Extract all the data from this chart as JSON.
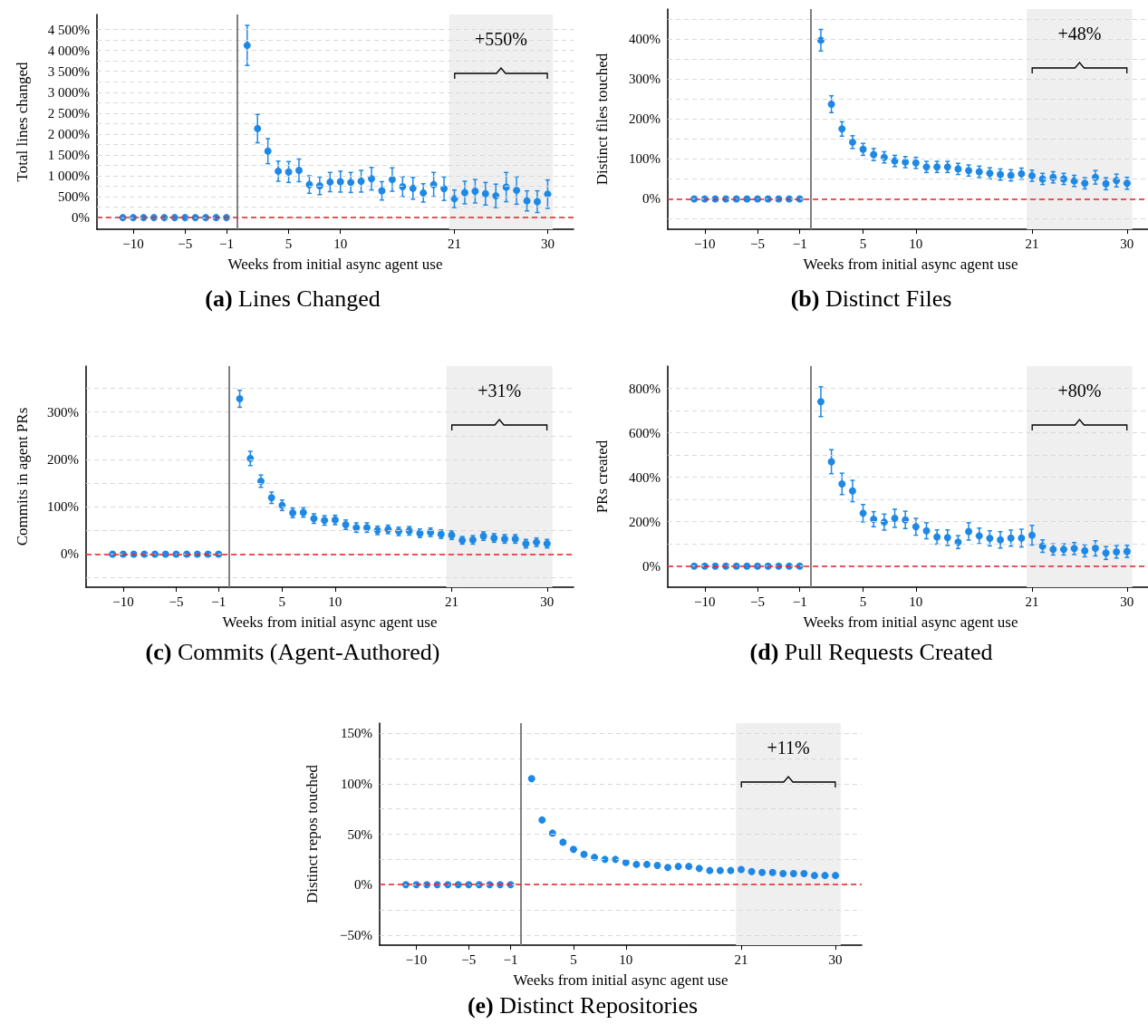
{
  "chart_data": [
    {
      "type": "scatter",
      "title": "(a) Lines Changed",
      "xlabel": "Weeks from initial async agent use",
      "ylabel": "Total lines changed",
      "color": "#1e88e5",
      "marker": "circle",
      "grid": "y",
      "x": [
        -11,
        -10,
        -9,
        -8,
        -7,
        -6,
        -5,
        -4,
        -3,
        -2,
        -1,
        1,
        2,
        3,
        4,
        5,
        6,
        7,
        8,
        9,
        10,
        11,
        12,
        13,
        14,
        15,
        16,
        17,
        18,
        19,
        20,
        21,
        22,
        23,
        24,
        25,
        26,
        27,
        28,
        29,
        30
      ],
      "values": [
        0,
        0,
        0,
        0,
        0,
        0,
        0,
        0,
        0,
        0,
        0,
        4120,
        2130,
        1590,
        1110,
        1090,
        1130,
        790,
        760,
        850,
        860,
        840,
        870,
        930,
        640,
        910,
        740,
        700,
        590,
        790,
        690,
        450,
        600,
        630,
        570,
        520,
        730,
        650,
        400,
        380,
        560
      ],
      "errors": [
        null,
        null,
        null,
        null,
        null,
        null,
        null,
        null,
        null,
        null,
        null,
        480,
        340,
        300,
        240,
        250,
        270,
        210,
        210,
        230,
        250,
        240,
        260,
        270,
        220,
        280,
        240,
        260,
        220,
        290,
        280,
        210,
        270,
        280,
        270,
        280,
        350,
        330,
        240,
        260,
        340
      ],
      "xlim": [
        -13.5,
        32.5
      ],
      "xticks": [
        {
          "value": -10,
          "label": "−10"
        },
        {
          "value": -5,
          "label": "−5"
        },
        {
          "value": -1,
          "label": "−1"
        },
        5,
        10,
        21,
        30
      ],
      "ylim": [
        -280,
        4860
      ],
      "yticks": [
        {
          "value": 0,
          "label": "0%"
        },
        {
          "value": 250,
          "label": null
        },
        {
          "value": 500,
          "label": "500%"
        },
        {
          "value": 750,
          "label": null
        },
        {
          "value": 1000,
          "label": "1 000%"
        },
        {
          "value": 1250,
          "label": null
        },
        {
          "value": 1500,
          "label": "1 500%"
        },
        {
          "value": 1750,
          "label": null
        },
        {
          "value": 2000,
          "label": "2 000%"
        },
        {
          "value": 2250,
          "label": null
        },
        {
          "value": 2500,
          "label": "2 500%"
        },
        {
          "value": 2750,
          "label": null
        },
        {
          "value": 3000,
          "label": "3 000%"
        },
        {
          "value": 3250,
          "label": null
        },
        {
          "value": 3500,
          "label": "3 500%"
        },
        {
          "value": 3750,
          "label": null
        },
        {
          "value": 4000,
          "label": "4 000%"
        },
        {
          "value": 4250,
          "label": null
        },
        {
          "value": 4500,
          "label": "4 500%"
        }
      ],
      "ref_lines": [
        {
          "axis": "x",
          "value": 0,
          "color": "#808080"
        },
        {
          "axis": "y",
          "value": 0,
          "color": "#e8202a",
          "line_style": "dashed"
        }
      ],
      "bands": [
        {
          "axis": "x",
          "from": 20.5,
          "to": 30.5,
          "color": "#efefef",
          "label": "+550%"
        }
      ]
    },
    {
      "type": "scatter",
      "title": "(b) Distinct Files",
      "xlabel": "Weeks from initial async agent use",
      "ylabel": "Distinct files touched",
      "color": "#1e88e5",
      "marker": "circle",
      "grid": "y",
      "x": [
        -11,
        -10,
        -9,
        -8,
        -7,
        -6,
        -5,
        -4,
        -3,
        -2,
        -1,
        1,
        2,
        3,
        4,
        5,
        6,
        7,
        8,
        9,
        10,
        11,
        12,
        13,
        14,
        15,
        16,
        17,
        18,
        19,
        20,
        21,
        22,
        23,
        24,
        25,
        26,
        27,
        28,
        29,
        30
      ],
      "values": [
        0,
        0,
        0,
        0,
        0,
        0,
        0,
        0,
        0,
        0,
        0,
        397,
        237,
        175,
        142,
        124,
        111,
        104,
        95,
        92,
        90,
        80,
        80,
        80,
        75,
        71,
        68,
        64,
        61,
        59,
        63,
        58,
        50,
        54,
        50,
        45,
        39,
        54,
        38,
        46,
        39
      ],
      "errors": [
        null,
        null,
        null,
        null,
        null,
        null,
        null,
        null,
        null,
        null,
        null,
        27,
        21,
        18,
        16,
        15,
        15,
        14,
        14,
        14,
        14,
        14,
        14,
        14,
        14,
        14,
        14,
        14,
        14,
        14,
        14,
        14,
        14,
        14,
        14,
        14,
        14,
        17,
        15,
        16,
        15
      ],
      "xlim": [
        -13.5,
        32.5
      ],
      "xticks": [
        {
          "value": -10,
          "label": "−10"
        },
        {
          "value": -5,
          "label": "−5"
        },
        {
          "value": -1,
          "label": "−1"
        },
        5,
        10,
        21,
        30
      ],
      "ylim": [
        -76,
        475
      ],
      "yticks": [
        {
          "value": -50,
          "label": null
        },
        {
          "value": 0,
          "label": "0%"
        },
        {
          "value": 50,
          "label": null
        },
        {
          "value": 100,
          "label": "100%"
        },
        {
          "value": 150,
          "label": null
        },
        {
          "value": 200,
          "label": "200%"
        },
        {
          "value": 250,
          "label": null
        },
        {
          "value": 300,
          "label": "300%"
        },
        {
          "value": 350,
          "label": null
        },
        {
          "value": 400,
          "label": "400%"
        },
        {
          "value": 450,
          "label": null
        }
      ],
      "ref_lines": [
        {
          "axis": "x",
          "value": 0,
          "color": "#808080"
        },
        {
          "axis": "y",
          "value": 0,
          "color": "#e8202a",
          "line_style": "dashed"
        }
      ],
      "bands": [
        {
          "axis": "x",
          "from": 20.5,
          "to": 30.5,
          "color": "#efefef",
          "label": "+48%"
        }
      ]
    },
    {
      "type": "scatter",
      "title": "(c) Commits (Agent-Authored)",
      "xlabel": "Weeks from initial async agent use",
      "ylabel": "Commits in agent PRs",
      "color": "#1e88e5",
      "marker": "circle",
      "grid": "y",
      "x": [
        -11,
        -10,
        -9,
        -8,
        -7,
        -6,
        -5,
        -4,
        -3,
        -2,
        -1,
        1,
        2,
        3,
        4,
        5,
        6,
        7,
        8,
        9,
        10,
        11,
        12,
        13,
        14,
        15,
        16,
        17,
        18,
        19,
        20,
        21,
        22,
        23,
        24,
        25,
        26,
        27,
        28,
        29,
        30
      ],
      "values": [
        0,
        0,
        0,
        0,
        0,
        0,
        0,
        0,
        0,
        0,
        0,
        328,
        202,
        154,
        119,
        103,
        87,
        88,
        75,
        71,
        72,
        62,
        56,
        56,
        50,
        52,
        48,
        49,
        44,
        46,
        42,
        40,
        29,
        30,
        38,
        34,
        32,
        32,
        22,
        25,
        22
      ],
      "errors": [
        null,
        null,
        null,
        null,
        null,
        null,
        null,
        null,
        null,
        null,
        null,
        18,
        15,
        13,
        12,
        11,
        10,
        10,
        10,
        10,
        10,
        10,
        10,
        10,
        9,
        9,
        9,
        9,
        9,
        9,
        9,
        9,
        8,
        9,
        9,
        9,
        9,
        9,
        9,
        9,
        9
      ],
      "xlim": [
        -13.5,
        32.5
      ],
      "xticks": [
        {
          "value": -10,
          "label": "−10"
        },
        {
          "value": -5,
          "label": "−5"
        },
        {
          "value": -1,
          "label": "−1"
        },
        5,
        10,
        21,
        30
      ],
      "ylim": [
        -70,
        397
      ],
      "yticks": [
        {
          "value": -50,
          "label": null
        },
        {
          "value": 0,
          "label": "0%"
        },
        {
          "value": 50,
          "label": null
        },
        {
          "value": 100,
          "label": "100%"
        },
        {
          "value": 150,
          "label": null
        },
        {
          "value": 200,
          "label": "200%"
        },
        {
          "value": 250,
          "label": null
        },
        {
          "value": 300,
          "label": "300%"
        },
        {
          "value": 350,
          "label": null
        }
      ],
      "ref_lines": [
        {
          "axis": "x",
          "value": 0,
          "color": "#808080"
        },
        {
          "axis": "y",
          "value": 0,
          "color": "#e8202a",
          "line_style": "dashed"
        }
      ],
      "bands": [
        {
          "axis": "x",
          "from": 20.5,
          "to": 30.5,
          "color": "#efefef",
          "label": "+31%"
        }
      ]
    },
    {
      "type": "scatter",
      "title": "(d) Pull Requests Created",
      "xlabel": "Weeks from initial async agent use",
      "ylabel": "PRs created",
      "color": "#1e88e5",
      "marker": "circle",
      "grid": "y",
      "x": [
        -11,
        -10,
        -9,
        -8,
        -7,
        -6,
        -5,
        -4,
        -3,
        -2,
        -1,
        1,
        2,
        3,
        4,
        5,
        6,
        7,
        8,
        9,
        10,
        11,
        12,
        13,
        14,
        15,
        16,
        17,
        18,
        19,
        20,
        21,
        22,
        23,
        24,
        25,
        26,
        27,
        28,
        29,
        30
      ],
      "values": [
        0,
        0,
        0,
        0,
        0,
        0,
        0,
        0,
        0,
        0,
        0,
        740,
        470,
        370,
        338,
        238,
        211,
        198,
        215,
        208,
        177,
        159,
        131,
        128,
        108,
        156,
        136,
        125,
        118,
        126,
        126,
        139,
        90,
        75,
        75,
        79,
        69,
        80,
        59,
        64,
        66
      ],
      "errors": [
        null,
        null,
        null,
        null,
        null,
        null,
        null,
        null,
        null,
        null,
        null,
        67,
        54,
        48,
        48,
        39,
        34,
        36,
        41,
        39,
        38,
        36,
        32,
        35,
        29,
        39,
        35,
        34,
        37,
        36,
        40,
        44,
        28,
        25,
        25,
        27,
        27,
        34,
        29,
        28,
        27
      ],
      "xlim": [
        -13.5,
        32.5
      ],
      "xticks": [
        {
          "value": -10,
          "label": "−10"
        },
        {
          "value": -5,
          "label": "−5"
        },
        {
          "value": -1,
          "label": "−1"
        },
        5,
        10,
        21,
        30
      ],
      "ylim": [
        -95,
        900
      ],
      "yticks": [
        {
          "value": 0,
          "label": "0%"
        },
        {
          "value": 100,
          "label": null
        },
        {
          "value": 200,
          "label": "200%"
        },
        {
          "value": 300,
          "label": null
        },
        {
          "value": 400,
          "label": "400%"
        },
        {
          "value": 500,
          "label": null
        },
        {
          "value": 600,
          "label": "600%"
        },
        {
          "value": 700,
          "label": null
        },
        {
          "value": 800,
          "label": "800%"
        }
      ],
      "ref_lines": [
        {
          "axis": "x",
          "value": 0,
          "color": "#808080"
        },
        {
          "axis": "y",
          "value": 0,
          "color": "#e8202a",
          "line_style": "dashed"
        }
      ],
      "bands": [
        {
          "axis": "x",
          "from": 20.5,
          "to": 30.5,
          "color": "#efefef",
          "label": "+80%"
        }
      ]
    },
    {
      "type": "scatter",
      "title": "(e) Distinct Repositories",
      "xlabel": "Weeks from initial async agent use",
      "ylabel": "Distinct repos touched",
      "color": "#1e88e5",
      "marker": "circle",
      "grid": "y",
      "x": [
        -11,
        -10,
        -9,
        -8,
        -7,
        -6,
        -5,
        -4,
        -3,
        -2,
        -1,
        1,
        2,
        3,
        4,
        5,
        6,
        7,
        8,
        9,
        10,
        11,
        12,
        13,
        14,
        15,
        16,
        17,
        18,
        19,
        20,
        21,
        22,
        23,
        24,
        25,
        26,
        27,
        28,
        29,
        30
      ],
      "values": [
        0,
        0,
        0,
        0,
        0,
        0,
        0,
        0,
        0,
        0,
        0,
        105,
        64,
        51,
        42,
        35,
        30,
        27,
        25,
        25,
        22,
        20,
        20,
        19,
        17,
        18,
        18,
        16,
        14,
        14,
        14,
        15,
        13,
        12,
        12,
        11,
        11,
        11,
        9,
        9,
        9
      ],
      "xlim": [
        -13.5,
        32.5
      ],
      "xticks": [
        {
          "value": -10,
          "label": "−10"
        },
        {
          "value": -5,
          "label": "−5"
        },
        {
          "value": -1,
          "label": "−1"
        },
        5,
        10,
        21,
        30
      ],
      "ylim": [
        -60,
        160
      ],
      "yticks": [
        {
          "value": -50,
          "label": "−50%"
        },
        {
          "value": -25,
          "label": null
        },
        {
          "value": 0,
          "label": "0%"
        },
        {
          "value": 25,
          "label": null
        },
        {
          "value": 50,
          "label": "50%"
        },
        {
          "value": 75,
          "label": null
        },
        {
          "value": 100,
          "label": "100%"
        },
        {
          "value": 125,
          "label": null
        },
        {
          "value": 150,
          "label": "150%"
        }
      ],
      "ref_lines": [
        {
          "axis": "x",
          "value": 0,
          "color": "#808080"
        },
        {
          "axis": "y",
          "value": 0,
          "color": "#e8202a",
          "line_style": "dashed"
        }
      ],
      "bands": [
        {
          "axis": "x",
          "from": 20.5,
          "to": 30.5,
          "color": "#efefef",
          "label": "+11%"
        }
      ]
    }
  ]
}
